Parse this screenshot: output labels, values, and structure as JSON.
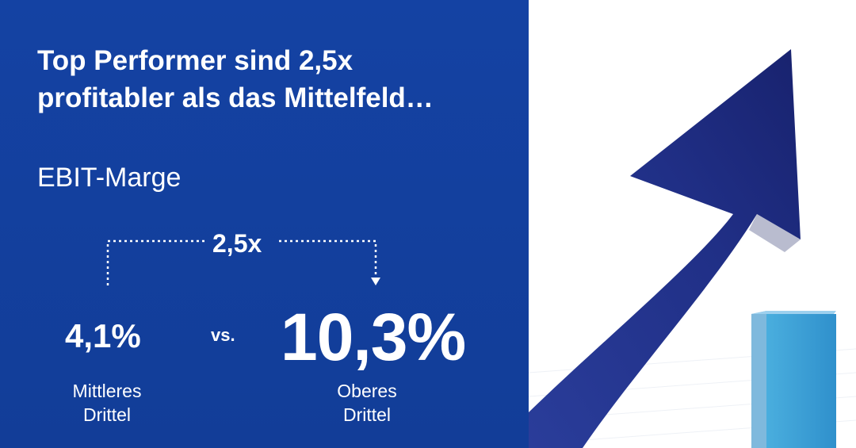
{
  "headline": {
    "line1": "Top Performer sind 2,5x",
    "line2": "profitabler als das Mittelfeld…"
  },
  "metric_label": "EBIT-Marge",
  "comparison": {
    "factor": "2,5x",
    "left": {
      "value": "4,1%",
      "label_line1": "Mittleres",
      "label_line2": "Drittel"
    },
    "separator": "vs.",
    "right": {
      "value": "10,3%",
      "label_line1": "Oberes",
      "label_line2": "Drittel"
    }
  },
  "colors": {
    "panel": "#1340a0",
    "arrow": "#1e2d7e",
    "bar": "#3fa3d8"
  },
  "icons": [
    "rising-arrow-icon",
    "growth-bar-icon"
  ]
}
